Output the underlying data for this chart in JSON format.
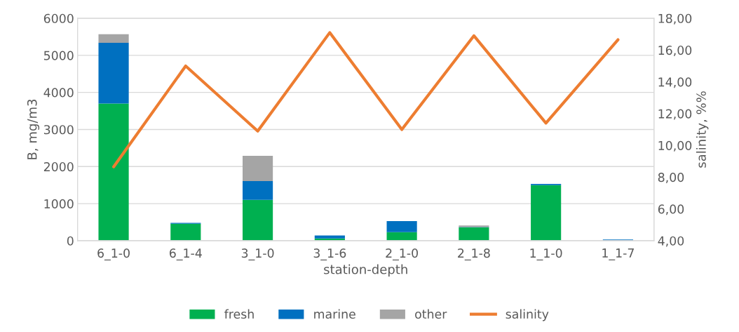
{
  "chart_data": {
    "type": "bar",
    "stacked": true,
    "xlabel": "station-depth",
    "ylabel": "B, mg/m3",
    "y2label": "salinity, %%",
    "categories": [
      "6_1-0",
      "6_1-4",
      "3_1-0",
      "3_1-6",
      "2_1-0",
      "2_1-8",
      "1_1-0",
      "1_1-7"
    ],
    "series": [
      {
        "name": "fresh",
        "color": "#00b050",
        "values": [
          3700,
          460,
          1100,
          60,
          230,
          360,
          1500,
          0
        ]
      },
      {
        "name": "marine",
        "color": "#0070c0",
        "values": [
          1640,
          20,
          510,
          80,
          300,
          10,
          30,
          30
        ]
      },
      {
        "name": "other",
        "color": "#a5a5a5",
        "values": [
          230,
          null,
          680,
          null,
          null,
          40,
          0,
          0
        ]
      },
      {
        "name": "salinity",
        "type": "line",
        "axis": "y2",
        "color": "#ed7d31",
        "values": [
          8.65,
          15.0,
          10.9,
          17.1,
          11.0,
          16.9,
          11.4,
          16.65
        ]
      }
    ],
    "ylim": [
      0,
      6000
    ],
    "yticks": [
      0,
      1000,
      2000,
      3000,
      4000,
      5000,
      6000
    ],
    "y2lim": [
      4,
      18
    ],
    "y2ticks": [
      {
        "value": 4,
        "label": "4,00"
      },
      {
        "value": 6,
        "label": "6,00"
      },
      {
        "value": 8,
        "label": "8,00"
      },
      {
        "value": 10,
        "label": "10,00"
      },
      {
        "value": 12,
        "label": "12,00"
      },
      {
        "value": 14,
        "label": "14,00"
      },
      {
        "value": 16,
        "label": "16,00"
      },
      {
        "value": 18,
        "label": "18,00"
      }
    ],
    "grid": "y",
    "legend": "bottom"
  }
}
